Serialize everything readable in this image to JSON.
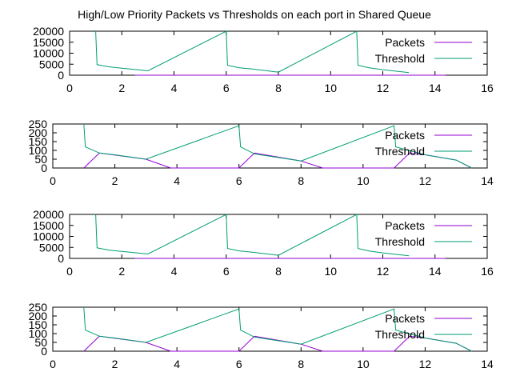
{
  "title": "High/Low Priority Packets vs Thresholds on each port in Shared Queue",
  "colors": {
    "packets": "#9400d3",
    "threshold": "#009e73",
    "axis": "#000000"
  },
  "chart_data": [
    {
      "type": "line",
      "xlim": [
        0,
        16
      ],
      "ylim": [
        0,
        20000
      ],
      "xticks": [
        "0",
        "2",
        "4",
        "6",
        "8",
        "10",
        "12",
        "14",
        "16"
      ],
      "yticks": [
        "0",
        "5000",
        "10000",
        "15000",
        "20000"
      ],
      "legend": "top-right",
      "series": [
        {
          "name": "Packets",
          "points": [
            [
              2.5,
              0
            ],
            [
              4.0,
              0
            ],
            [
              7.3,
              0
            ],
            [
              9.2,
              0
            ],
            [
              12.3,
              0
            ],
            [
              14.4,
              0
            ]
          ]
        },
        {
          "name": "Threshold",
          "points": [
            [
              1.0,
              20000
            ],
            [
              1.05,
              4800
            ],
            [
              1.5,
              3800
            ],
            [
              2.0,
              3200
            ],
            [
              3.0,
              2000
            ],
            [
              6.0,
              20000
            ],
            [
              6.05,
              4500
            ],
            [
              6.5,
              3400
            ],
            [
              7.0,
              2800
            ],
            [
              8.0,
              1400
            ],
            [
              11.0,
              20000
            ],
            [
              11.05,
              4500
            ],
            [
              11.5,
              3300
            ],
            [
              12.0,
              2500
            ],
            [
              13.0,
              1200
            ]
          ]
        }
      ]
    },
    {
      "type": "line",
      "xlim": [
        0,
        14
      ],
      "ylim": [
        0,
        250
      ],
      "xticks": [
        "0",
        "2",
        "4",
        "6",
        "8",
        "10",
        "12",
        "14"
      ],
      "yticks": [
        "0",
        "50",
        "100",
        "150",
        "200",
        "250"
      ],
      "legend": "top-right",
      "series": [
        {
          "name": "Packets",
          "points": [
            [
              1.0,
              0
            ],
            [
              1.5,
              85
            ],
            [
              3.0,
              50
            ],
            [
              3.8,
              0
            ],
            [
              6.0,
              0
            ],
            [
              6.5,
              85
            ],
            [
              8.0,
              40
            ],
            [
              8.7,
              0
            ],
            [
              11.0,
              0
            ],
            [
              11.5,
              85
            ],
            [
              12.0,
              75
            ],
            [
              13.0,
              45
            ],
            [
              13.5,
              0
            ]
          ]
        },
        {
          "name": "Threshold",
          "points": [
            [
              1.0,
              250
            ],
            [
              1.05,
              120
            ],
            [
              1.5,
              85
            ],
            [
              2.0,
              75
            ],
            [
              3.0,
              50
            ],
            [
              6.0,
              240
            ],
            [
              6.05,
              120
            ],
            [
              6.5,
              80
            ],
            [
              8.0,
              40
            ],
            [
              11.0,
              240
            ],
            [
              11.05,
              120
            ],
            [
              12.0,
              75
            ],
            [
              13.0,
              45
            ],
            [
              13.5,
              0
            ]
          ]
        }
      ]
    },
    {
      "type": "line",
      "xlim": [
        0,
        16
      ],
      "ylim": [
        0,
        20000
      ],
      "xticks": [
        "0",
        "2",
        "4",
        "6",
        "8",
        "10",
        "12",
        "14",
        "16"
      ],
      "yticks": [
        "0",
        "5000",
        "10000",
        "15000",
        "20000"
      ],
      "legend": "top-right",
      "series": [
        {
          "name": "Packets",
          "points": [
            [
              2.5,
              0
            ],
            [
              4.0,
              0
            ],
            [
              7.3,
              0
            ],
            [
              9.2,
              0
            ],
            [
              12.3,
              0
            ],
            [
              14.4,
              0
            ]
          ]
        },
        {
          "name": "Threshold",
          "points": [
            [
              1.0,
              20000
            ],
            [
              1.05,
              4800
            ],
            [
              1.5,
              3800
            ],
            [
              2.0,
              3200
            ],
            [
              3.0,
              2000
            ],
            [
              6.0,
              20000
            ],
            [
              6.05,
              4500
            ],
            [
              6.5,
              3400
            ],
            [
              7.0,
              2800
            ],
            [
              8.0,
              1400
            ],
            [
              11.0,
              20000
            ],
            [
              11.05,
              4500
            ],
            [
              11.5,
              3300
            ],
            [
              12.0,
              2500
            ],
            [
              13.0,
              1200
            ]
          ]
        }
      ]
    },
    {
      "type": "line",
      "xlim": [
        0,
        14
      ],
      "ylim": [
        0,
        250
      ],
      "xticks": [
        "0",
        "2",
        "4",
        "6",
        "8",
        "10",
        "12",
        "14"
      ],
      "yticks": [
        "0",
        "50",
        "100",
        "150",
        "200",
        "250"
      ],
      "legend": "top-right",
      "series": [
        {
          "name": "Packets",
          "points": [
            [
              1.0,
              0
            ],
            [
              1.5,
              85
            ],
            [
              3.0,
              50
            ],
            [
              3.8,
              0
            ],
            [
              6.0,
              0
            ],
            [
              6.5,
              85
            ],
            [
              8.0,
              40
            ],
            [
              8.7,
              0
            ],
            [
              11.0,
              0
            ],
            [
              11.5,
              85
            ],
            [
              12.0,
              75
            ],
            [
              13.0,
              45
            ],
            [
              13.5,
              0
            ]
          ]
        },
        {
          "name": "Threshold",
          "points": [
            [
              1.0,
              250
            ],
            [
              1.05,
              120
            ],
            [
              1.5,
              85
            ],
            [
              2.0,
              75
            ],
            [
              3.0,
              50
            ],
            [
              6.0,
              240
            ],
            [
              6.05,
              120
            ],
            [
              6.5,
              80
            ],
            [
              8.0,
              40
            ],
            [
              11.0,
              240
            ],
            [
              11.05,
              120
            ],
            [
              12.0,
              75
            ],
            [
              13.0,
              45
            ],
            [
              13.5,
              0
            ]
          ]
        }
      ]
    }
  ]
}
